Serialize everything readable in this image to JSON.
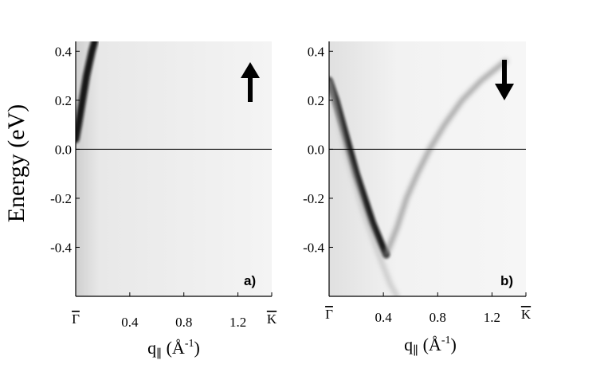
{
  "chart_data": [
    {
      "type": "heatmap",
      "panel_label": "a)",
      "spin_arrow": "up-arrow",
      "ylabel": "Energy (eV)",
      "xlabel_main": "q",
      "xlabel_sub": "∥",
      "xlabel_unit": " (Å",
      "xlabel_exp": "-1",
      "xlabel_close": ")",
      "xlim": [
        0,
        1.45
      ],
      "ylim": [
        -0.6,
        0.44
      ],
      "xticks": [
        {
          "value": 0.0,
          "label": "Γ",
          "overline": true
        },
        {
          "value": 0.4,
          "label": "0.4",
          "overline": false
        },
        {
          "value": 0.8,
          "label": "0.8",
          "overline": false
        },
        {
          "value": 1.2,
          "label": "1.2",
          "overline": false
        },
        {
          "value": 1.45,
          "label": "K",
          "overline": true
        }
      ],
      "yticks": [
        {
          "value": 0.4,
          "label": "0.4"
        },
        {
          "value": 0.2,
          "label": "0.2"
        },
        {
          "value": 0.0,
          "label": "0.0"
        },
        {
          "value": -0.2,
          "label": "-0.2"
        },
        {
          "value": -0.4,
          "label": "-0.4"
        }
      ],
      "reference_line_y": 0.0,
      "bands": [
        {
          "name": "",
          "color": "#111111",
          "points": [
            [
              0.0,
              0.04
            ],
            [
              0.02,
              0.1
            ],
            [
              0.05,
              0.2
            ],
            [
              0.08,
              0.3
            ],
            [
              0.12,
              0.4
            ],
            [
              0.14,
              0.44
            ]
          ]
        }
      ]
    },
    {
      "type": "heatmap",
      "panel_label": "b)",
      "spin_arrow": "down-arrow",
      "xlabel_main": "q",
      "xlabel_sub": "∥",
      "xlabel_unit": " (Å",
      "xlabel_exp": "-1",
      "xlabel_close": ")",
      "xlim": [
        0,
        1.45
      ],
      "ylim": [
        -0.6,
        0.44
      ],
      "xticks": [
        {
          "value": 0.0,
          "label": "Γ",
          "overline": true
        },
        {
          "value": 0.4,
          "label": "0.4",
          "overline": false
        },
        {
          "value": 0.8,
          "label": "0.8",
          "overline": false
        },
        {
          "value": 1.2,
          "label": "1.2",
          "overline": false
        },
        {
          "value": 1.45,
          "label": "K",
          "overline": true
        }
      ],
      "yticks": [
        {
          "value": 0.4,
          "label": "0.4"
        },
        {
          "value": 0.2,
          "label": "0.2"
        },
        {
          "value": 0.0,
          "label": "0.0"
        },
        {
          "value": -0.2,
          "label": "-0.2"
        },
        {
          "value": -0.4,
          "label": "-0.4"
        }
      ],
      "reference_line_y": 0.0,
      "bands": [
        {
          "name": "",
          "color": "#111111",
          "points": [
            [
              0.0,
              0.28
            ],
            [
              0.05,
              0.2
            ],
            [
              0.1,
              0.1
            ],
            [
              0.15,
              0.0
            ],
            [
              0.2,
              -0.1
            ],
            [
              0.26,
              -0.2
            ],
            [
              0.32,
              -0.3
            ],
            [
              0.38,
              -0.38
            ],
            [
              0.42,
              -0.43
            ]
          ]
        },
        {
          "name": "",
          "color": "#8a8a8a",
          "points": [
            [
              0.42,
              -0.43
            ],
            [
              0.5,
              -0.32
            ],
            [
              0.57,
              -0.2
            ],
            [
              0.65,
              -0.1
            ],
            [
              0.74,
              0.0
            ],
            [
              0.85,
              0.1
            ],
            [
              0.98,
              0.2
            ],
            [
              1.12,
              0.28
            ],
            [
              1.3,
              0.36
            ]
          ]
        },
        {
          "name": "",
          "color": "#bdbdbd",
          "points": [
            [
              0.0,
              0.28
            ],
            [
              0.12,
              0.0
            ],
            [
              0.25,
              -0.25
            ],
            [
              0.38,
              -0.45
            ],
            [
              0.45,
              -0.55
            ],
            [
              0.5,
              -0.6
            ]
          ]
        }
      ]
    }
  ]
}
